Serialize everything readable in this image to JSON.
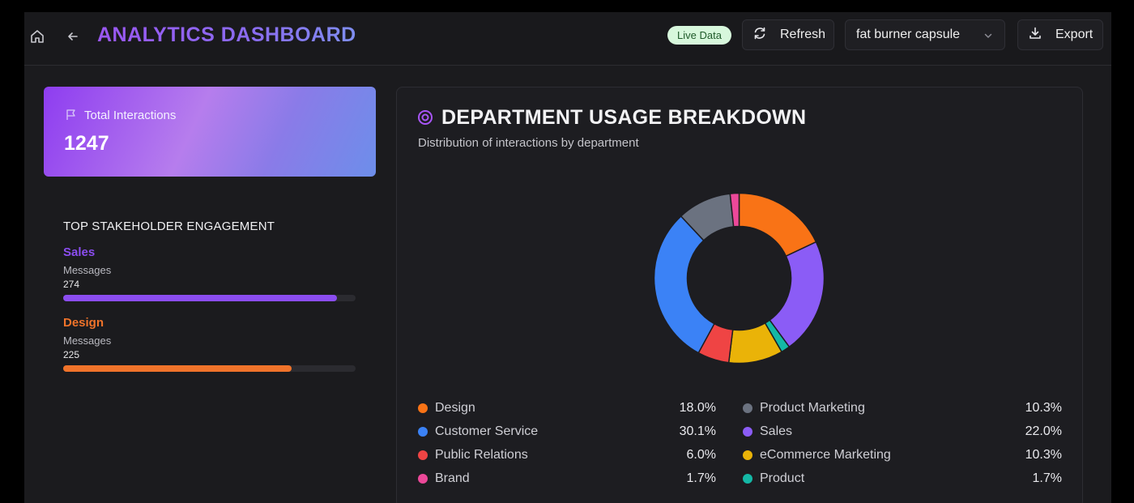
{
  "header": {
    "title": "ANALYTICS DASHBOARD",
    "live_badge": "Live Data",
    "refresh_label": "Refresh",
    "selected_product": "fat burner capsule",
    "export_label": "Export",
    "icons": {
      "home": "home-icon",
      "back": "arrow-left-icon",
      "refresh": "refresh-icon",
      "chevron": "chevron-down-icon",
      "export": "download-icon"
    }
  },
  "total": {
    "label": "Total Interactions",
    "value": "1247"
  },
  "engagement": {
    "title": "TOP STAKEHOLDER ENGAGEMENT",
    "items": [
      {
        "name": "Sales",
        "metric": "Messages",
        "count": "274",
        "fill_fraction": 0.936,
        "color": "#8b4df0"
      },
      {
        "name": "Design",
        "metric": "Messages",
        "count": "225",
        "fill_fraction": 0.78,
        "color": "#f0732a"
      }
    ]
  },
  "department": {
    "title": "DEPARTMENT USAGE BREAKDOWN",
    "subtitle": "Distribution of interactions by department",
    "legend_left": [
      {
        "label": "Design",
        "pct": "18.0%",
        "color": "#f97316"
      },
      {
        "label": "Customer Service",
        "pct": "30.1%",
        "color": "#3b82f6"
      },
      {
        "label": "Public Relations",
        "pct": "6.0%",
        "color": "#ef4444"
      },
      {
        "label": "Brand",
        "pct": "1.7%",
        "color": "#ec4899"
      }
    ],
    "legend_right": [
      {
        "label": "Product Marketing",
        "pct": "10.3%",
        "color": "#6b7280"
      },
      {
        "label": "Sales",
        "pct": "22.0%",
        "color": "#8b5cf6"
      },
      {
        "label": "eCommerce Marketing",
        "pct": "10.3%",
        "color": "#eab308"
      },
      {
        "label": "Product",
        "pct": "1.7%",
        "color": "#14b8a6"
      }
    ]
  },
  "chart_data": {
    "type": "pie",
    "categories": [
      "Design",
      "Sales",
      "Product",
      "eCommerce Marketing",
      "Public Relations",
      "Customer Service",
      "Product Marketing",
      "Brand"
    ],
    "values": [
      18.0,
      22.0,
      1.7,
      10.3,
      6.0,
      30.1,
      10.3,
      1.7
    ],
    "colors": [
      "#f97316",
      "#8b5cf6",
      "#14b8a6",
      "#eab308",
      "#ef4444",
      "#3b82f6",
      "#6b7280",
      "#ec4899"
    ],
    "title": "DEPARTMENT USAGE BREAKDOWN",
    "legend": "bottom"
  }
}
